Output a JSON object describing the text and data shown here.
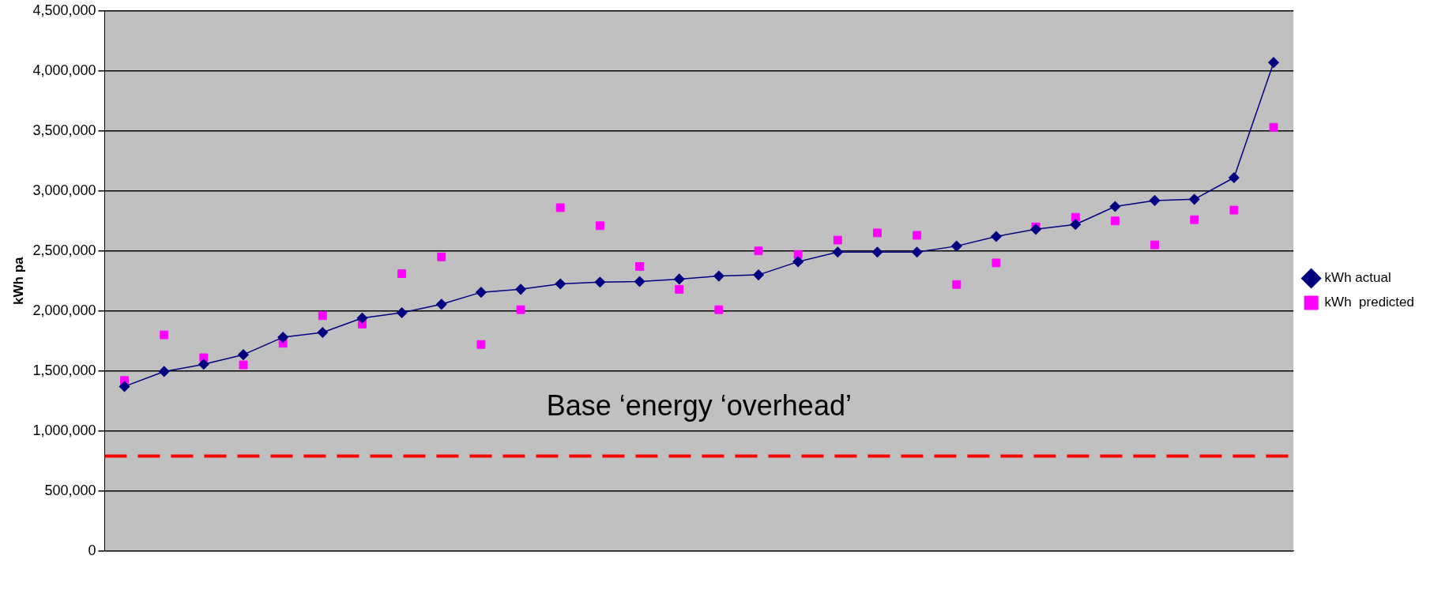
{
  "chart_data": {
    "type": "line",
    "ylabel": "kWh pa",
    "categories": [
      null,
      null,
      null,
      null,
      null,
      null,
      null,
      null,
      null,
      null,
      null,
      null,
      null,
      null,
      null,
      null,
      null,
      null,
      null,
      null,
      null,
      null,
      null,
      null,
      null,
      null,
      null,
      null,
      null,
      null
    ],
    "series": [
      {
        "name": "kWh actual",
        "color": "#000080",
        "marker": "diamond",
        "values": [
          1370000,
          1495000,
          1555000,
          1635000,
          1780000,
          1820000,
          1940000,
          1985000,
          2055000,
          2155000,
          2180000,
          2225000,
          2240000,
          2245000,
          2265000,
          2290000,
          2300000,
          2410000,
          2490000,
          2490000,
          2490000,
          2540000,
          2620000,
          2680000,
          2720000,
          2870000,
          2920000,
          2930000,
          3110000,
          4070000
        ]
      },
      {
        "name": "kWh  predicted",
        "type": "scatter",
        "color": "#ff00ff",
        "marker": "square",
        "values": [
          1420000,
          1800000,
          1610000,
          1550000,
          1730000,
          1960000,
          1890000,
          2310000,
          2450000,
          1720000,
          2010000,
          2860000,
          2710000,
          2370000,
          2180000,
          2010000,
          2500000,
          2470000,
          2590000,
          2650000,
          2630000,
          2220000,
          2400000,
          2700000,
          2780000,
          2750000,
          2550000,
          2760000,
          2840000,
          3530000
        ]
      }
    ],
    "ylim": [
      0,
      4500000
    ],
    "yticks": [
      0,
      {
        "value": 500000,
        "label": "500,000"
      },
      {
        "value": 1000000,
        "label": "1,000,000"
      },
      {
        "value": 1500000,
        "label": "1,500,000"
      },
      {
        "value": 2000000,
        "label": "2,000,000"
      },
      {
        "value": 2500000,
        "label": "2,500,000"
      },
      {
        "value": 3000000,
        "label": "3,000,000"
      },
      {
        "value": 3500000,
        "label": "3,500,000"
      },
      {
        "value": 4000000,
        "label": "4,000,000"
      },
      {
        "value": 4500000,
        "label": "4,500,000"
      }
    ],
    "grid": "y",
    "legend": "right",
    "ref_lines": [
      {
        "axis": "y",
        "value": 790000,
        "label": "Base ‘energy ‘overhead’",
        "color": "#ff0000",
        "line_style": "dashed"
      }
    ]
  }
}
